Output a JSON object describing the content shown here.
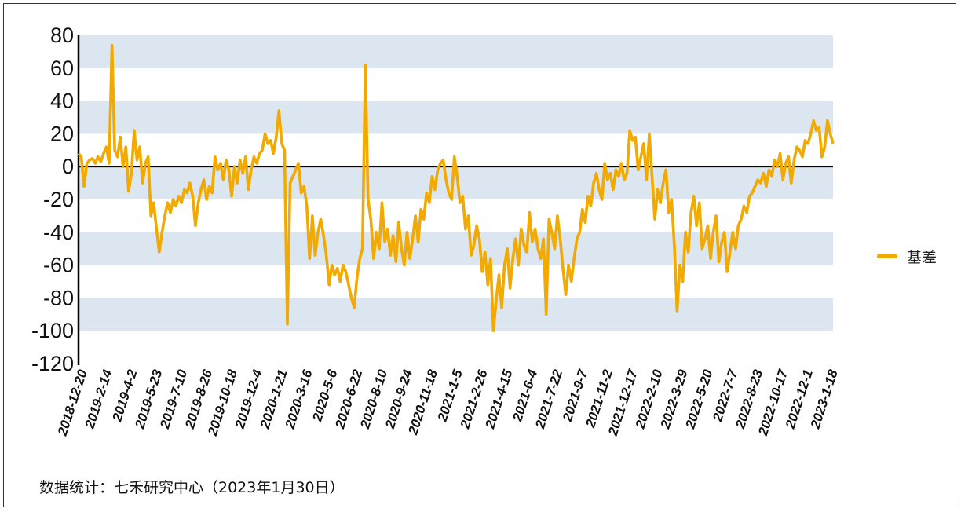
{
  "colors": {
    "series": "#F2A900",
    "band": "#DCE6F1",
    "axis": "#000000"
  },
  "legend": {
    "label": "基差",
    "placement": "right"
  },
  "source_text": "数据统计：七禾研究中心（2023年1月30日）",
  "chart_data": {
    "type": "line",
    "title": "",
    "xlabel": "",
    "ylabel": "",
    "ylim": [
      -120,
      80
    ],
    "y_ticks": [
      80,
      60,
      40,
      20,
      0,
      -20,
      -40,
      -60,
      -80,
      -100,
      -120
    ],
    "alternating_bands": true,
    "x_tick_labels": [
      "2018-12-20",
      "2019-2-14",
      "2019-4-2",
      "2019-5-23",
      "2019-7-10",
      "2019-8-26",
      "2019-10-18",
      "2019-12-4",
      "2020-1-21",
      "2020-3-16",
      "2020-5-6",
      "2020-6-22",
      "2020-8-10",
      "2020-9-24",
      "2020-11-18",
      "2021-1-5",
      "2021-2-26",
      "2021-4-15",
      "2021-6-4",
      "2021-7-22",
      "2021-9-7",
      "2021-11-2",
      "2021-12-17",
      "2022-2-10",
      "2022-3-29",
      "2022-5-20",
      "2022-7-7",
      "2022-8-23",
      "2022-10-17",
      "2022-12-1",
      "2023-1-18"
    ],
    "series": [
      {
        "name": "基差",
        "values": [
          8,
          6,
          -12,
          2,
          4,
          5,
          2,
          6,
          3,
          8,
          12,
          2,
          74,
          10,
          6,
          18,
          0,
          12,
          -15,
          -4,
          22,
          4,
          12,
          -10,
          2,
          6,
          -30,
          -22,
          -38,
          -52,
          -40,
          -30,
          -22,
          -28,
          -20,
          -24,
          -18,
          -22,
          -14,
          -16,
          -10,
          -18,
          -36,
          -22,
          -14,
          -8,
          -20,
          -12,
          -16,
          6,
          -2,
          2,
          -8,
          4,
          -2,
          -18,
          0,
          -10,
          4,
          -4,
          6,
          -14,
          -2,
          6,
          2,
          8,
          10,
          20,
          14,
          16,
          8,
          18,
          34,
          14,
          10,
          -96,
          -10,
          -6,
          -2,
          2,
          -16,
          -12,
          -24,
          -56,
          -30,
          -54,
          -40,
          -32,
          -42,
          -54,
          -72,
          -60,
          -66,
          -62,
          -70,
          -60,
          -64,
          -72,
          -80,
          -86,
          -68,
          -56,
          -50,
          62,
          -20,
          -32,
          -56,
          -40,
          -50,
          -22,
          -46,
          -38,
          -54,
          -42,
          -58,
          -34,
          -50,
          -60,
          -40,
          -56,
          -44,
          -30,
          -46,
          -26,
          -32,
          -16,
          -22,
          -6,
          -14,
          -2,
          2,
          4,
          -8,
          -16,
          -20,
          6,
          -6,
          -22,
          -18,
          -38,
          -30,
          -54,
          -48,
          -36,
          -44,
          -64,
          -52,
          -72,
          -56,
          -100,
          -82,
          -66,
          -86,
          -60,
          -50,
          -74,
          -56,
          -44,
          -60,
          -38,
          -48,
          -52,
          -28,
          -46,
          -38,
          -50,
          -56,
          -44,
          -90,
          -32,
          -40,
          -50,
          -30,
          -44,
          -62,
          -78,
          -60,
          -70,
          -56,
          -44,
          -40,
          -26,
          -34,
          -18,
          -24,
          -10,
          -4,
          -14,
          -20,
          2,
          -8,
          -4,
          -14,
          -2,
          -6,
          2,
          -8,
          -4,
          22,
          16,
          18,
          -2,
          6,
          14,
          -8,
          20,
          -6,
          -32,
          -14,
          -22,
          -10,
          -2,
          -28,
          -20,
          -48,
          -88,
          -60,
          -70,
          -40,
          -52,
          -28,
          -18,
          -36,
          -22,
          -50,
          -44,
          -36,
          -56,
          -40,
          -30,
          -58,
          -46,
          -40,
          -64,
          -52,
          -40,
          -50,
          -36,
          -32,
          -24,
          -28,
          -18,
          -16,
          -12,
          -8,
          -10,
          -4,
          -12,
          -2,
          -6,
          4,
          0,
          8,
          -8,
          2,
          6,
          -10,
          4,
          12,
          10,
          6,
          16,
          14,
          20,
          28,
          22,
          24,
          6,
          12,
          28,
          20,
          14
        ]
      }
    ]
  }
}
